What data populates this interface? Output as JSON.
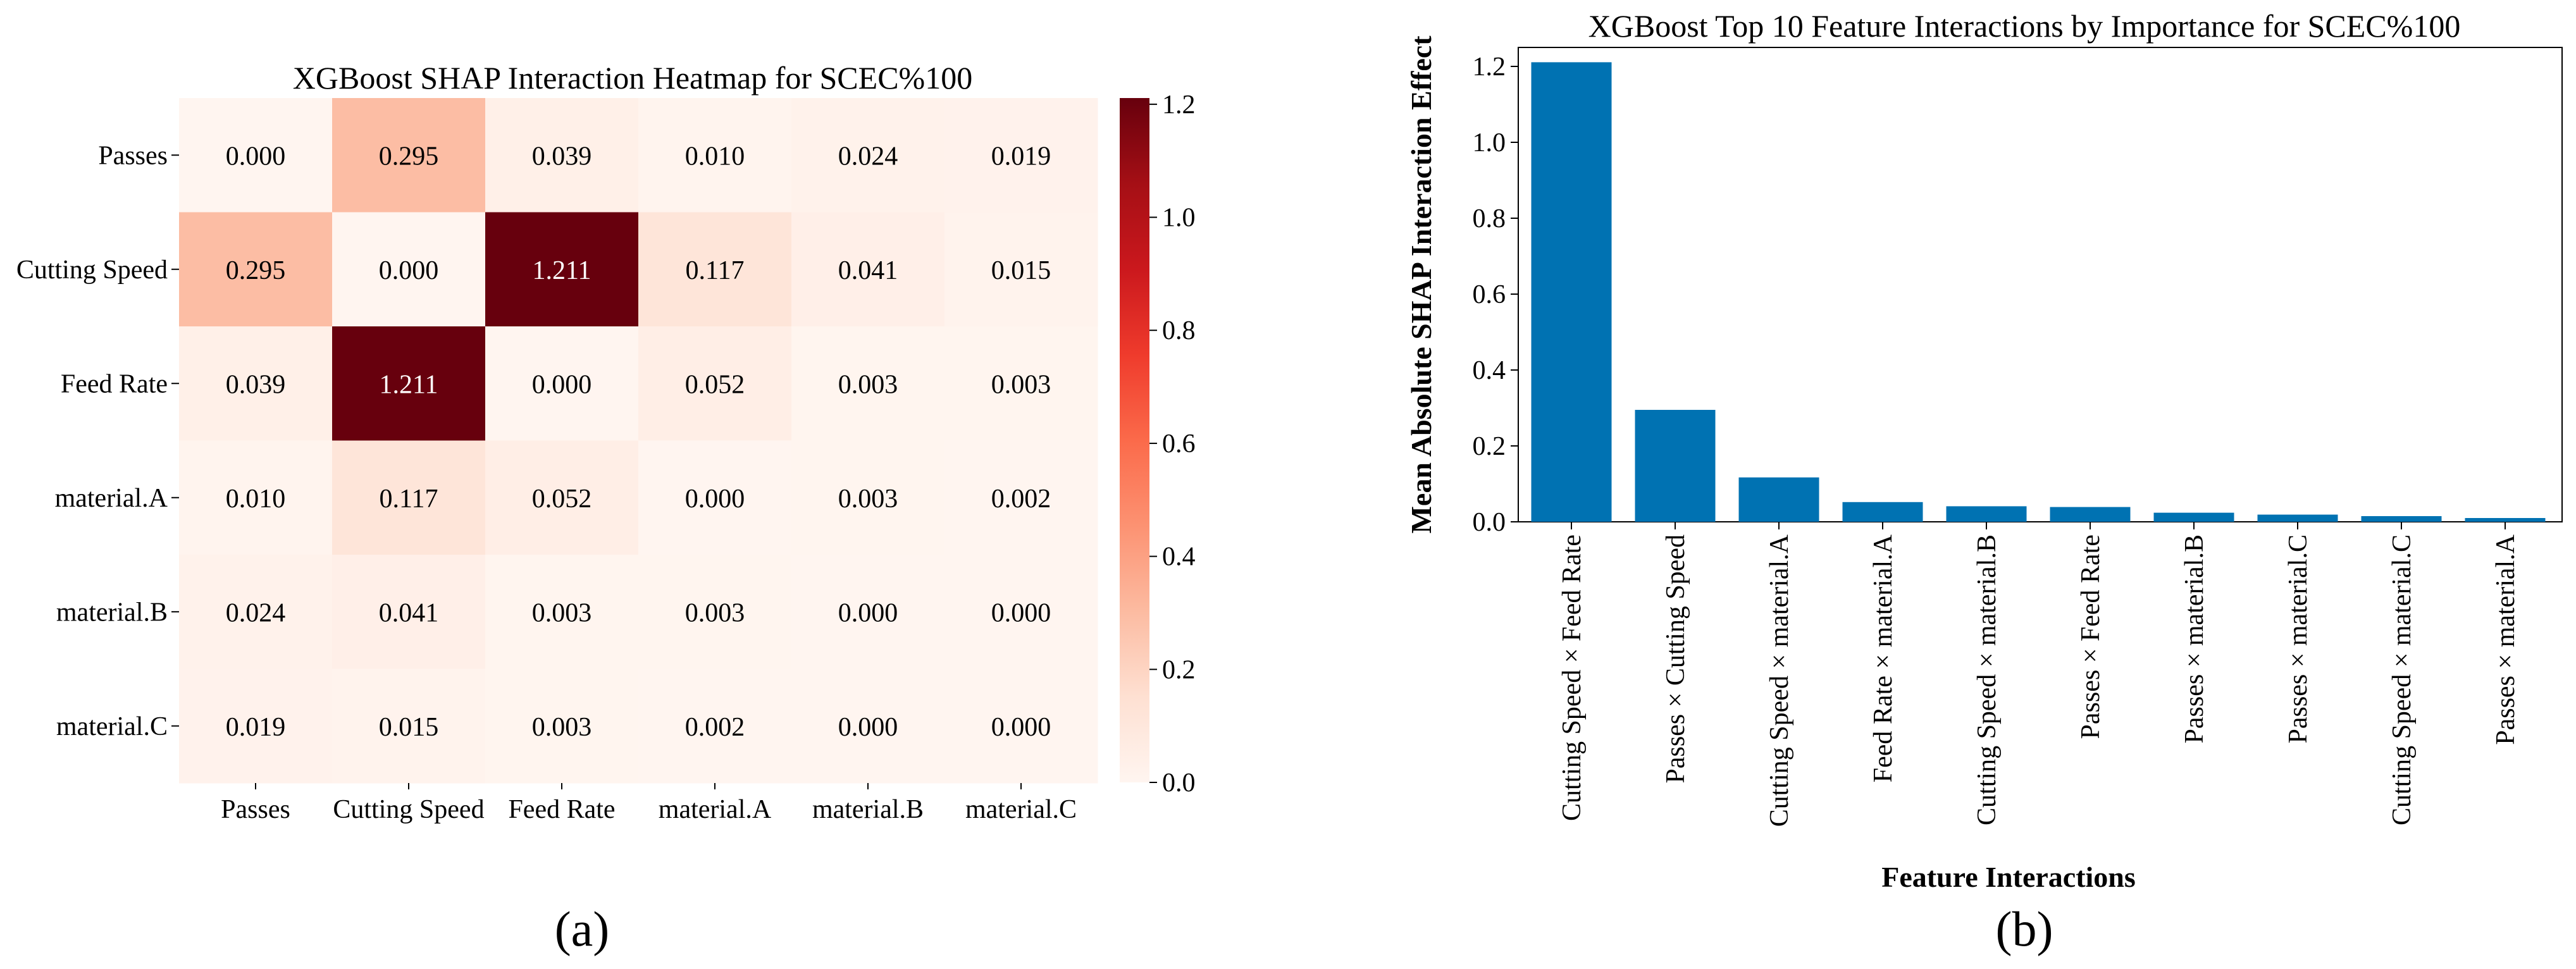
{
  "chart_data": [
    {
      "type": "heatmap",
      "title": "XGBoost SHAP Interaction Heatmap for SCEC%100",
      "rows": [
        "Passes",
        "Cutting Speed",
        "Feed Rate",
        "material.A",
        "material.B",
        "material.C"
      ],
      "columns": [
        "Passes",
        "Cutting Speed",
        "Feed Rate",
        "material.A",
        "material.B",
        "material.C"
      ],
      "values": [
        [
          0.0,
          0.295,
          0.039,
          0.01,
          0.024,
          0.019
        ],
        [
          0.295,
          0.0,
          1.211,
          0.117,
          0.041,
          0.015
        ],
        [
          0.039,
          1.211,
          0.0,
          0.052,
          0.003,
          0.003
        ],
        [
          0.01,
          0.117,
          0.052,
          0.0,
          0.003,
          0.002
        ],
        [
          0.024,
          0.041,
          0.003,
          0.003,
          0.0,
          0.0
        ],
        [
          0.019,
          0.015,
          0.003,
          0.002,
          0.0,
          0.0
        ]
      ],
      "cell_labels": [
        [
          "0.000",
          "0.295",
          "0.039",
          "0.010",
          "0.024",
          "0.019"
        ],
        [
          "0.295",
          "0.000",
          "1.211",
          "0.117",
          "0.041",
          "0.015"
        ],
        [
          "0.039",
          "1.211",
          "0.000",
          "0.052",
          "0.003",
          "0.003"
        ],
        [
          "0.010",
          "0.117",
          "0.052",
          "0.000",
          "0.003",
          "0.002"
        ],
        [
          "0.024",
          "0.041",
          "0.003",
          "0.003",
          "0.000",
          "0.000"
        ],
        [
          "0.019",
          "0.015",
          "0.003",
          "0.002",
          "0.000",
          "0.000"
        ]
      ],
      "colorbar": {
        "range": [
          0,
          1.211
        ],
        "ticks": [
          0.0,
          0.2,
          0.4,
          0.6,
          0.8,
          1.0,
          1.2
        ],
        "tick_labels": [
          "0.0",
          "0.2",
          "0.4",
          "0.6",
          "0.8",
          "1.0",
          "1.2"
        ],
        "colormap": "Reds"
      },
      "panel_label": "(a)"
    },
    {
      "type": "bar",
      "title": "XGBoost Top 10 Feature Interactions by Importance for SCEC%100",
      "xlabel": "Feature Interactions",
      "ylabel": "Mean Absolute SHAP Interaction Effect",
      "categories": [
        "Cutting Speed × Feed Rate",
        "Passes × Cutting Speed",
        "Cutting Speed × material.A",
        "Feed Rate × material.A",
        "Cutting Speed × material.B",
        "Passes × Feed Rate",
        "Passes × material.B",
        "Passes × material.C",
        "Cutting Speed × material.C",
        "Passes × material.A"
      ],
      "values": [
        1.211,
        0.295,
        0.117,
        0.052,
        0.041,
        0.039,
        0.024,
        0.019,
        0.015,
        0.01
      ],
      "ylim": [
        0,
        1.25
      ],
      "yticks": [
        0.0,
        0.2,
        0.4,
        0.6,
        0.8,
        1.0,
        1.2
      ],
      "ytick_labels": [
        "0.0",
        "0.2",
        "0.4",
        "0.6",
        "0.8",
        "1.0",
        "1.2"
      ],
      "bar_color": "#0072b2",
      "panel_label": "(b)"
    }
  ]
}
